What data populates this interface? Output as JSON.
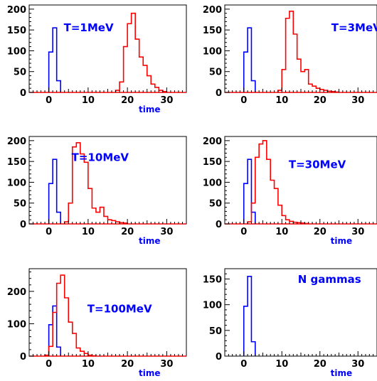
{
  "chart_data": [
    {
      "type": "histogram",
      "annotation": "T=1MeV",
      "xlabel": "time",
      "xlim": [
        -5,
        35
      ],
      "ylim": [
        0,
        210
      ],
      "xticks": [
        0,
        10,
        20,
        30
      ],
      "yticks": [
        0,
        50,
        100,
        150,
        200
      ],
      "series": [
        {
          "color": "#0000ff",
          "bins": [
            [
              0,
              1,
              97
            ],
            [
              1,
              2,
              155
            ],
            [
              2,
              3,
              28
            ]
          ]
        },
        {
          "color": "#ff0000",
          "bins": [
            [
              17,
              18,
              5
            ],
            [
              18,
              19,
              25
            ],
            [
              19,
              20,
              110
            ],
            [
              20,
              21,
              165
            ],
            [
              21,
              22,
              190
            ],
            [
              22,
              23,
              128
            ],
            [
              23,
              24,
              85
            ],
            [
              24,
              25,
              65
            ],
            [
              25,
              26,
              40
            ],
            [
              26,
              27,
              20
            ],
            [
              27,
              28,
              12
            ],
            [
              28,
              29,
              5
            ],
            [
              29,
              30,
              2
            ]
          ]
        }
      ]
    },
    {
      "type": "histogram",
      "annotation": "T=3MeV",
      "xlabel": "",
      "xlim": [
        -5,
        35
      ],
      "ylim": [
        0,
        210
      ],
      "xticks": [
        0,
        10,
        20,
        30
      ],
      "yticks": [
        0,
        50,
        100,
        150,
        200
      ],
      "series": [
        {
          "color": "#0000ff",
          "bins": [
            [
              0,
              1,
              97
            ],
            [
              1,
              2,
              155
            ],
            [
              2,
              3,
              28
            ]
          ]
        },
        {
          "color": "#ff0000",
          "bins": [
            [
              9,
              10,
              5
            ],
            [
              10,
              11,
              55
            ],
            [
              11,
              12,
              178
            ],
            [
              12,
              13,
              195
            ],
            [
              13,
              14,
              140
            ],
            [
              14,
              15,
              80
            ],
            [
              15,
              16,
              50
            ],
            [
              16,
              17,
              55
            ],
            [
              17,
              18,
              20
            ],
            [
              18,
              19,
              15
            ],
            [
              19,
              20,
              10
            ],
            [
              20,
              21,
              7
            ],
            [
              21,
              22,
              5
            ],
            [
              22,
              23,
              3
            ],
            [
              23,
              24,
              2
            ],
            [
              24,
              25,
              1
            ]
          ]
        }
      ]
    },
    {
      "type": "histogram",
      "annotation": "T=10MeV",
      "xlabel": "time",
      "xlim": [
        -5,
        35
      ],
      "ylim": [
        0,
        210
      ],
      "xticks": [
        0,
        10,
        20,
        30
      ],
      "yticks": [
        0,
        50,
        100,
        150,
        200
      ],
      "series": [
        {
          "color": "#0000ff",
          "bins": [
            [
              0,
              1,
              97
            ],
            [
              1,
              2,
              155
            ],
            [
              2,
              3,
              28
            ]
          ]
        },
        {
          "color": "#ff0000",
          "bins": [
            [
              4,
              5,
              5
            ],
            [
              5,
              6,
              50
            ],
            [
              6,
              7,
              185
            ],
            [
              7,
              8,
              195
            ],
            [
              8,
              9,
              168
            ],
            [
              9,
              10,
              148
            ],
            [
              10,
              11,
              85
            ],
            [
              11,
              12,
              38
            ],
            [
              12,
              13,
              28
            ],
            [
              13,
              14,
              40
            ],
            [
              14,
              15,
              18
            ],
            [
              15,
              16,
              10
            ],
            [
              16,
              17,
              8
            ],
            [
              17,
              18,
              5
            ],
            [
              18,
              19,
              3
            ],
            [
              19,
              20,
              2
            ]
          ]
        }
      ]
    },
    {
      "type": "histogram",
      "annotation": "T=30MeV",
      "xlabel": "time",
      "xlim": [
        -5,
        35
      ],
      "ylim": [
        0,
        210
      ],
      "xticks": [
        0,
        10,
        20,
        30
      ],
      "yticks": [
        0,
        50,
        100,
        150,
        200
      ],
      "series": [
        {
          "color": "#0000ff",
          "bins": [
            [
              0,
              1,
              97
            ],
            [
              1,
              2,
              155
            ],
            [
              2,
              3,
              28
            ]
          ]
        },
        {
          "color": "#ff0000",
          "bins": [
            [
              1,
              2,
              5
            ],
            [
              2,
              3,
              50
            ],
            [
              3,
              4,
              160
            ],
            [
              4,
              5,
              192
            ],
            [
              5,
              6,
              200
            ],
            [
              6,
              7,
              155
            ],
            [
              7,
              8,
              105
            ],
            [
              8,
              9,
              85
            ],
            [
              9,
              10,
              45
            ],
            [
              10,
              11,
              20
            ],
            [
              11,
              12,
              10
            ],
            [
              12,
              13,
              6
            ],
            [
              13,
              14,
              4
            ],
            [
              14,
              15,
              3
            ],
            [
              15,
              16,
              2
            ],
            [
              16,
              17,
              1
            ]
          ]
        }
      ]
    },
    {
      "type": "histogram",
      "annotation": "T=100MeV",
      "xlabel": "time",
      "xlim": [
        -5,
        35
      ],
      "ylim": [
        0,
        270
      ],
      "xticks": [
        0,
        10,
        20,
        30
      ],
      "yticks": [
        0,
        100,
        200
      ],
      "series": [
        {
          "color": "#0000ff",
          "bins": [
            [
              0,
              1,
              97
            ],
            [
              1,
              2,
              155
            ],
            [
              2,
              3,
              28
            ]
          ]
        },
        {
          "color": "#ff0000",
          "bins": [
            [
              -1,
              0,
              3
            ],
            [
              0,
              1,
              30
            ],
            [
              1,
              2,
              135
            ],
            [
              2,
              3,
              225
            ],
            [
              3,
              4,
              250
            ],
            [
              4,
              5,
              180
            ],
            [
              5,
              6,
              105
            ],
            [
              6,
              7,
              70
            ],
            [
              7,
              8,
              25
            ],
            [
              8,
              9,
              15
            ],
            [
              9,
              10,
              8
            ],
            [
              10,
              11,
              3
            ],
            [
              11,
              12,
              1
            ]
          ]
        }
      ]
    },
    {
      "type": "histogram",
      "annotation": "N gammas",
      "xlabel": "time",
      "xlim": [
        -5,
        35
      ],
      "ylim": [
        0,
        170
      ],
      "xticks": [
        0,
        10,
        20,
        30
      ],
      "yticks": [
        0,
        50,
        100,
        150
      ],
      "series": [
        {
          "color": "#0000ff",
          "bins": [
            [
              0,
              1,
              97
            ],
            [
              1,
              2,
              155
            ],
            [
              2,
              3,
              28
            ]
          ]
        }
      ]
    }
  ]
}
